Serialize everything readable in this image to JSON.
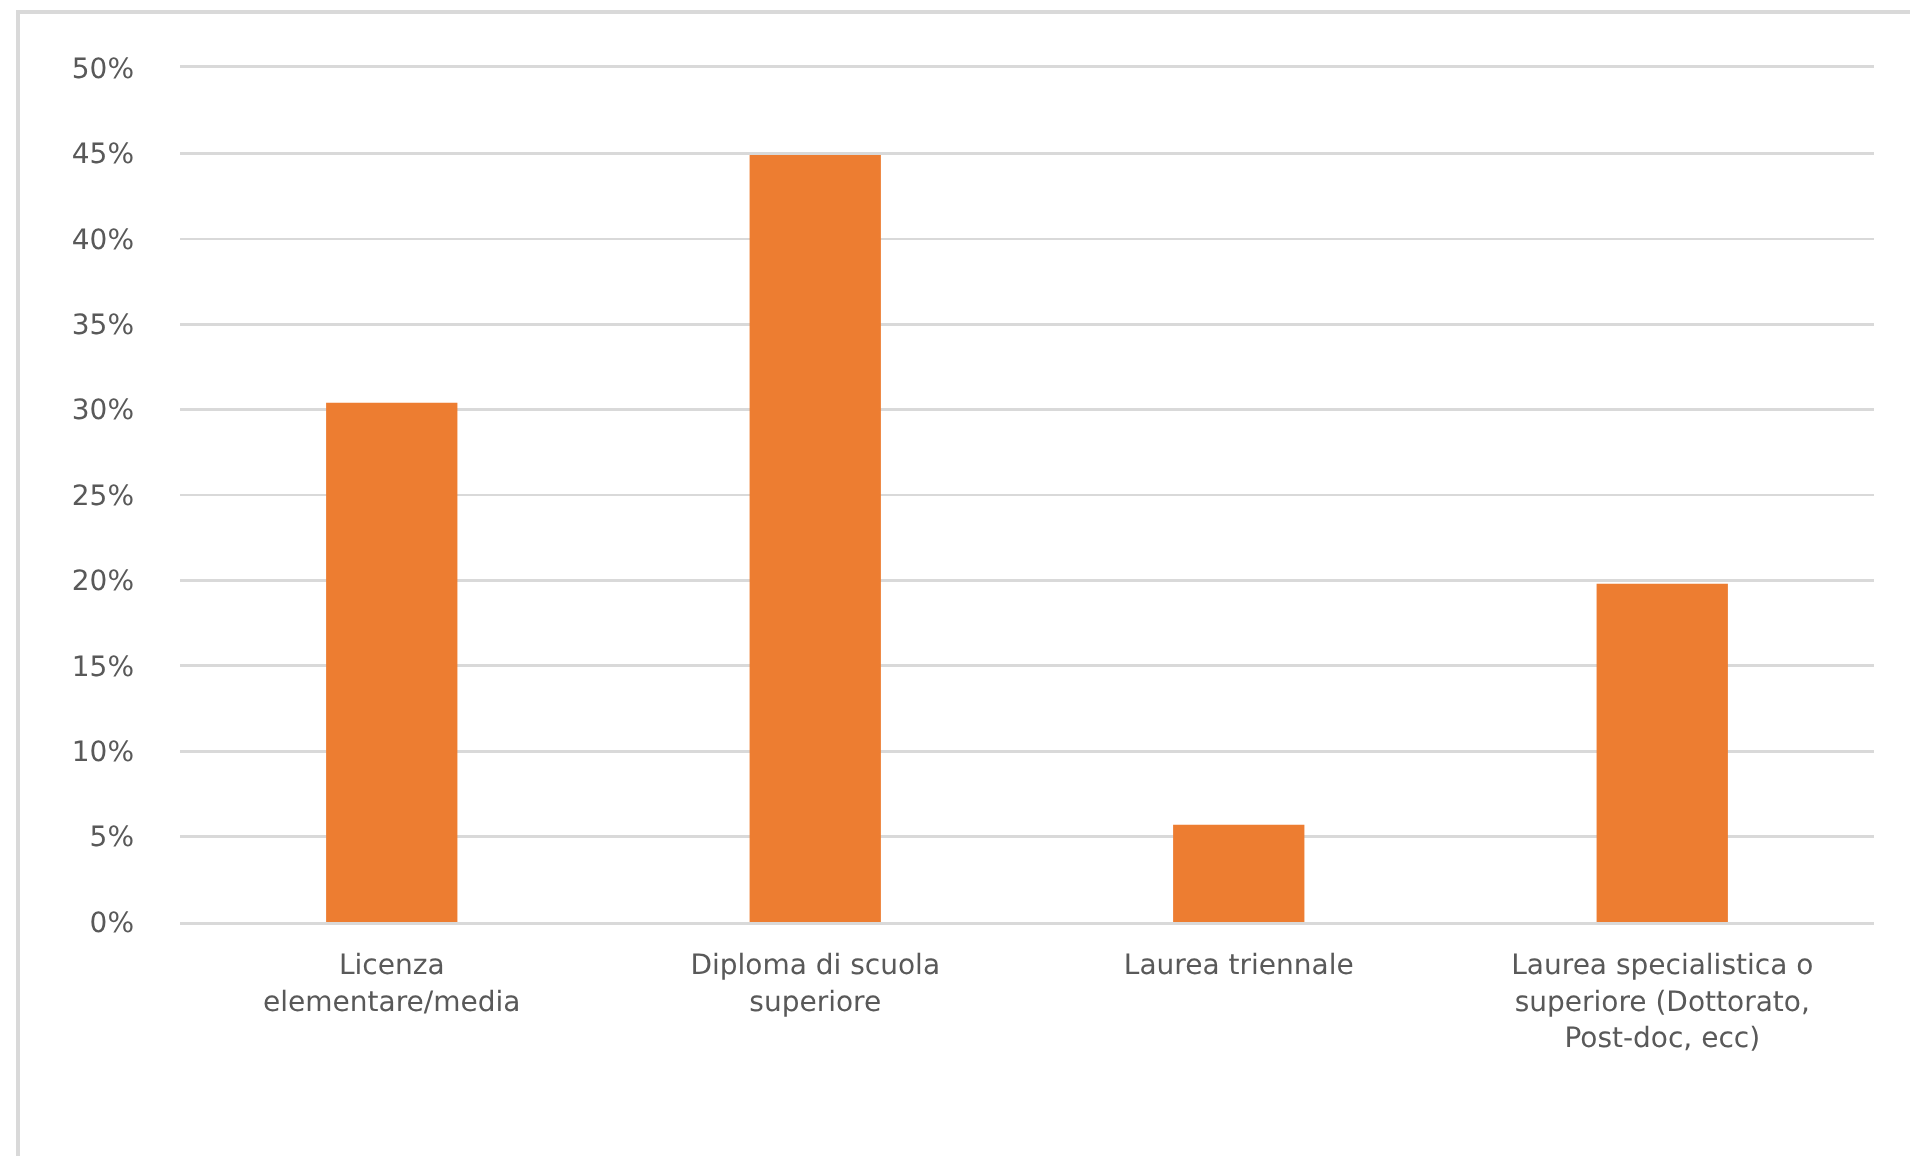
{
  "chart_data": {
    "type": "bar",
    "categories": [
      "Licenza elementare/media",
      "Diploma di scuola superiore",
      "Laurea triennale",
      "Laurea specialistica o superiore (Dottorato, Post-doc, ecc)"
    ],
    "values": [
      30.4,
      44.9,
      5.7,
      19.8
    ],
    "color": "#ed7d31",
    "ylim": [
      0,
      50
    ],
    "yticks": [
      {
        "value": 0,
        "label": "0%"
      },
      {
        "value": 5,
        "label": "5%"
      },
      {
        "value": 10,
        "label": "10%"
      },
      {
        "value": 15,
        "label": "15%"
      },
      {
        "value": 20,
        "label": "20%"
      },
      {
        "value": 25,
        "label": "25%"
      },
      {
        "value": 30,
        "label": "30%"
      },
      {
        "value": 35,
        "label": "35%"
      },
      {
        "value": 40,
        "label": "40%"
      },
      {
        "value": 45,
        "label": "45%"
      },
      {
        "value": 50,
        "label": "50%"
      }
    ],
    "grid": "y"
  }
}
